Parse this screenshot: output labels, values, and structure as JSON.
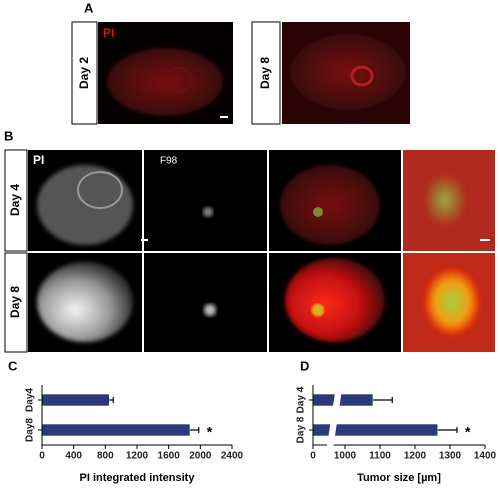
{
  "panel_a": {
    "label": "A",
    "stain": "PI",
    "rows": [
      "Day 2",
      "Day 8"
    ]
  },
  "panel_b": {
    "label": "B",
    "stains": [
      "PI",
      "F98"
    ],
    "rows": [
      "Day 4",
      "Day 8"
    ]
  },
  "chart_data": [
    {
      "type": "bar",
      "orientation": "horizontal",
      "panel_label": "C",
      "categories": [
        "Day4",
        "Day8"
      ],
      "values": [
        850,
        1870
      ],
      "errors": [
        50,
        110
      ],
      "color": "#2b3a7a",
      "xlim": [
        0,
        2400
      ],
      "xticks": [
        0,
        400,
        800,
        1200,
        1600,
        2000,
        2400
      ],
      "xlabel": "PI integrated intensity",
      "annotations": [
        {
          "category": "Day8",
          "text": "*"
        }
      ]
    },
    {
      "type": "bar",
      "orientation": "horizontal",
      "panel_label": "D",
      "categories": [
        "Day 4",
        "Day 8"
      ],
      "values": [
        1080,
        1265
      ],
      "errors": [
        55,
        55
      ],
      "color": "#2b3a7a",
      "xlim": [
        0,
        1400
      ],
      "xbreak": [
        50,
        1000
      ],
      "xticks": [
        0,
        1000,
        1100,
        1200,
        1300,
        1400
      ],
      "xlabel": "Tumor size  [µm]",
      "annotations": [
        {
          "category": "Day 8",
          "text": "*"
        }
      ]
    }
  ]
}
